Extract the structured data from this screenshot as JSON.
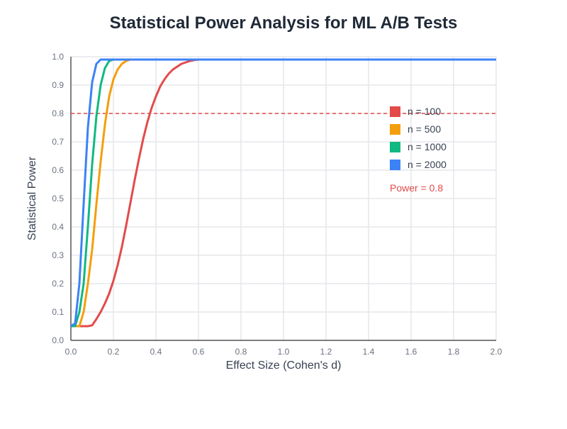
{
  "chart_data": {
    "type": "line",
    "title": "Statistical Power Analysis for ML A/B Tests",
    "xlabel": "Effect Size (Cohen's d)",
    "ylabel": "Statistical Power",
    "xlim": [
      0,
      2.0
    ],
    "ylim": [
      0,
      1.0
    ],
    "x_ticks": [
      0.0,
      0.2,
      0.4,
      0.6,
      0.8,
      1.0,
      1.2,
      1.4,
      1.6,
      1.8,
      2.0
    ],
    "x_tick_labels": [
      "0.0",
      "0.2",
      "0.4",
      "0.6",
      "0.8",
      "1.0",
      "1.2",
      "1.4",
      "1.6",
      "1.8",
      "2.0"
    ],
    "y_ticks": [
      0.0,
      0.1,
      0.2,
      0.3,
      0.4,
      0.5,
      0.6,
      0.7,
      0.8,
      0.9,
      1.0
    ],
    "y_tick_labels": [
      "0.0",
      "0.1",
      "0.2",
      "0.3",
      "0.4",
      "0.5",
      "0.6",
      "0.7",
      "0.8",
      "0.9",
      "1.0"
    ],
    "grid": true,
    "legend_position": "top-right",
    "series": [
      {
        "name": "n = 100",
        "color": "#e34a4a",
        "x": [
          0.0,
          0.02,
          0.04,
          0.06,
          0.08,
          0.1,
          0.12,
          0.14,
          0.16,
          0.18,
          0.2,
          0.22,
          0.24,
          0.26,
          0.28,
          0.3,
          0.32,
          0.34,
          0.36,
          0.38,
          0.4,
          0.42,
          0.44,
          0.46,
          0.48,
          0.5,
          0.52,
          0.54,
          0.56,
          0.58,
          0.6,
          2.0
        ],
        "y": [
          0.05,
          0.05,
          0.05,
          0.05,
          0.05,
          0.053,
          0.075,
          0.1,
          0.13,
          0.165,
          0.21,
          0.265,
          0.33,
          0.405,
          0.485,
          0.565,
          0.64,
          0.71,
          0.77,
          0.82,
          0.86,
          0.895,
          0.92,
          0.94,
          0.955,
          0.965,
          0.975,
          0.98,
          0.985,
          0.988,
          0.99,
          0.99
        ]
      },
      {
        "name": "n = 500",
        "color": "#f59e0b",
        "x": [
          0.0,
          0.02,
          0.04,
          0.06,
          0.08,
          0.1,
          0.12,
          0.14,
          0.16,
          0.18,
          0.2,
          0.22,
          0.24,
          0.26,
          0.28,
          2.0
        ],
        "y": [
          0.05,
          0.05,
          0.05,
          0.1,
          0.2,
          0.32,
          0.48,
          0.63,
          0.76,
          0.86,
          0.92,
          0.955,
          0.975,
          0.985,
          0.99,
          0.99
        ]
      },
      {
        "name": "n = 1000",
        "color": "#10b981",
        "x": [
          0.0,
          0.02,
          0.04,
          0.06,
          0.08,
          0.1,
          0.12,
          0.14,
          0.16,
          0.18,
          0.2,
          2.0
        ],
        "y": [
          0.05,
          0.05,
          0.1,
          0.2,
          0.4,
          0.62,
          0.79,
          0.9,
          0.96,
          0.985,
          0.99,
          0.99
        ]
      },
      {
        "name": "n = 2000",
        "color": "#3b82f6",
        "x": [
          0.0,
          0.02,
          0.04,
          0.06,
          0.08,
          0.1,
          0.12,
          0.14,
          2.0
        ],
        "y": [
          0.05,
          0.06,
          0.2,
          0.48,
          0.75,
          0.91,
          0.975,
          0.99,
          0.99
        ]
      }
    ],
    "reference_line": {
      "label": "Power = 0.8",
      "y": 0.8,
      "color": "#e34a4a"
    }
  }
}
